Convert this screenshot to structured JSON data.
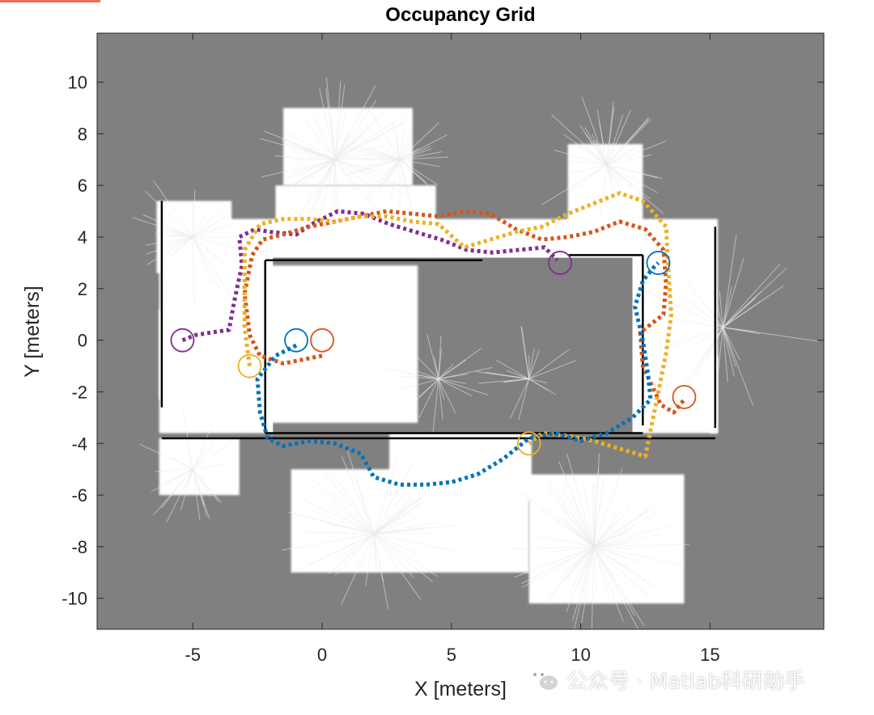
{
  "chart_data": {
    "type": "scatter",
    "title": "Occupancy Grid",
    "xlabel": "X [meters]",
    "ylabel": "Y [meters]",
    "xlim": [
      -8.7,
      19.4
    ],
    "ylim": [
      -11.2,
      11.9
    ],
    "xticks": [
      -5,
      0,
      5,
      10,
      15
    ],
    "xtick_labels": [
      "-5",
      "0",
      "5",
      "10",
      "15"
    ],
    "yticks": [
      10,
      8,
      6,
      4,
      2,
      0,
      -2,
      -4,
      -6,
      -8,
      -10
    ],
    "ytick_labels": [
      "10",
      "8",
      "6",
      "4",
      "2",
      "0",
      "-2",
      "-4",
      "-6",
      "-8",
      "-10"
    ],
    "grid": false,
    "legend": false,
    "background_unknown_color": "#808080",
    "free_space_color": "#ffffff",
    "occupied_color": "#000000",
    "free_regions": [
      {
        "x": [
          -6.3,
          15.3
        ],
        "y": [
          -3.6,
          4.7
        ]
      },
      {
        "x": [
          -1.8,
          4.4
        ],
        "y": [
          4.2,
          6.0
        ]
      },
      {
        "x": [
          -1.5,
          3.5
        ],
        "y": [
          6.0,
          9.0
        ]
      },
      {
        "x": [
          9.5,
          12.4
        ],
        "y": [
          4.6,
          7.6
        ]
      },
      {
        "x": [
          2.6,
          8.1
        ],
        "y": [
          -6.2,
          -3.6
        ]
      },
      {
        "x": [
          -1.2,
          8.0
        ],
        "y": [
          -9.0,
          -5.0
        ]
      },
      {
        "x": [
          8.0,
          14.0
        ],
        "y": [
          -10.2,
          -5.2
        ]
      },
      {
        "x": [
          -6.3,
          -3.2
        ],
        "y": [
          -6.0,
          -3.8
        ]
      },
      {
        "x": [
          -6.4,
          -3.5
        ],
        "y": [
          2.6,
          5.4
        ]
      },
      {
        "x": [
          -6.3,
          -3.8
        ],
        "y": [
          -2.3,
          1.2
        ]
      },
      {
        "x": [
          15.0,
          15.3
        ],
        "y": [
          -3.6,
          -0.6
        ]
      }
    ],
    "unknown_regions": [
      {
        "x": [
          -1.9,
          12.0
        ],
        "y": [
          -3.6,
          3.2
        ]
      }
    ],
    "free_inner_regions": [
      {
        "x": [
          -2.2,
          3.7
        ],
        "y": [
          -3.2,
          2.9
        ]
      }
    ],
    "walls": [
      {
        "x": [
          -2.2,
          12.4
        ],
        "y": [
          -3.6,
          -3.6
        ]
      },
      {
        "x": [
          -2.2,
          -2.2
        ],
        "y": [
          -3.6,
          3.1
        ]
      },
      {
        "x": [
          -2.2,
          6.2
        ],
        "y": [
          3.1,
          3.1
        ]
      },
      {
        "x": [
          12.4,
          12.4
        ],
        "y": [
          -3.3,
          3.3
        ]
      },
      {
        "x": [
          9.5,
          12.4
        ],
        "y": [
          3.3,
          3.3
        ]
      },
      {
        "x": [
          -6.2,
          -6.2
        ],
        "y": [
          -2.6,
          5.4
        ]
      },
      {
        "x": [
          15.2,
          15.2
        ],
        "y": [
          -3.4,
          4.4
        ]
      },
      {
        "x": [
          -6.2,
          15.2
        ],
        "y": [
          -3.8,
          -3.8
        ]
      }
    ],
    "series": [
      {
        "color": "#7e2f8e",
        "x": [
          -5.4,
          -4.9,
          -4.3,
          -3.6,
          -3.4,
          -3.1,
          -3.2,
          -2.6,
          -2.0,
          -1.0,
          -0.4,
          0.6,
          1.6,
          2.6,
          3.6,
          4.6,
          5.6,
          6.6,
          7.6,
          8.6,
          9.1
        ],
        "y": [
          0.0,
          0.2,
          0.3,
          0.4,
          1.5,
          2.9,
          4.0,
          4.3,
          4.2,
          4.1,
          4.5,
          5.0,
          4.9,
          4.5,
          4.2,
          3.9,
          3.5,
          3.4,
          3.5,
          3.6,
          3.1
        ]
      },
      {
        "color": "#d95319",
        "x": [
          0.0,
          -1.5,
          -2.4,
          -2.8,
          -3.0,
          -2.7,
          -2.3,
          -1.5,
          -0.5,
          0.5,
          1.5,
          2.5,
          3.5,
          4.5,
          5.5,
          6.5,
          7.5,
          8.5,
          9.5,
          10.5,
          11.5,
          12.5,
          13.2,
          13.3,
          13.2,
          12.3,
          12.4,
          13.1,
          13.6,
          14.0
        ],
        "y": [
          -0.6,
          -0.9,
          -0.6,
          0.2,
          1.8,
          3.3,
          3.9,
          4.1,
          4.4,
          4.6,
          4.8,
          5.0,
          4.9,
          4.8,
          5.0,
          4.9,
          4.3,
          3.9,
          4.0,
          4.2,
          4.6,
          4.3,
          3.5,
          2.2,
          1.0,
          0.3,
          -1.0,
          -2.5,
          -2.8,
          -2.3
        ]
      },
      {
        "color": "#edb120",
        "x": [
          -2.8,
          -3.0,
          -3.0,
          -3.0,
          -2.4,
          -1.5,
          -0.5,
          0.5,
          1.5,
          2.5,
          3.5,
          4.5,
          5.5,
          6.5,
          7.5,
          8.5,
          9.5,
          10.5,
          11.5,
          12.4,
          13.3,
          13.4,
          13.5,
          13.3,
          13.0,
          12.7,
          12.5,
          11.5,
          10.5,
          9.5,
          8.5,
          8.0
        ],
        "y": [
          -1.0,
          0.5,
          2.0,
          3.5,
          4.5,
          4.7,
          4.7,
          4.6,
          4.8,
          4.8,
          4.6,
          4.5,
          3.6,
          3.9,
          4.2,
          4.4,
          4.9,
          5.3,
          5.7,
          5.4,
          4.4,
          2.5,
          1.0,
          -0.5,
          -2.0,
          -3.5,
          -4.5,
          -4.2,
          -3.9,
          -3.7,
          -3.6,
          -4.0
        ]
      },
      {
        "color": "#0072bd",
        "x": [
          -1.0,
          -1.8,
          -2.5,
          -2.4,
          -2.1,
          -1.5,
          -0.5,
          0.5,
          1.5,
          2.0,
          3.0,
          4.0,
          5.0,
          6.0,
          7.0,
          8.0,
          9.0,
          10.0,
          11.0,
          12.0,
          12.7,
          12.6,
          12.4,
          12.1,
          12.4,
          12.8,
          13.0
        ],
        "y": [
          -0.2,
          -0.6,
          -1.5,
          -2.8,
          -3.8,
          -4.1,
          -3.9,
          -4.0,
          -4.4,
          -5.3,
          -5.6,
          -5.6,
          -5.5,
          -5.2,
          -4.6,
          -3.8,
          -3.6,
          -3.9,
          -3.6,
          -3.0,
          -2.3,
          -1.3,
          0.0,
          1.3,
          2.3,
          2.8,
          3.0
        ]
      }
    ],
    "markers": [
      {
        "color": "#7e2f8e",
        "x": -5.4,
        "y": 0.0
      },
      {
        "color": "#7e2f8e",
        "x": 9.2,
        "y": 3.0
      },
      {
        "color": "#0072bd",
        "x": -1.0,
        "y": 0.0
      },
      {
        "color": "#0072bd",
        "x": 13.0,
        "y": 3.0
      },
      {
        "color": "#d95319",
        "x": 0.0,
        "y": 0.0
      },
      {
        "color": "#d95319",
        "x": 14.0,
        "y": -2.2
      },
      {
        "color": "#edb120",
        "x": -2.8,
        "y": -1.0
      },
      {
        "color": "#edb120",
        "x": 8.0,
        "y": -4.0
      }
    ]
  },
  "watermark": {
    "icon": "wechat-icon",
    "text": "公众号 · Matlab科研助手"
  }
}
